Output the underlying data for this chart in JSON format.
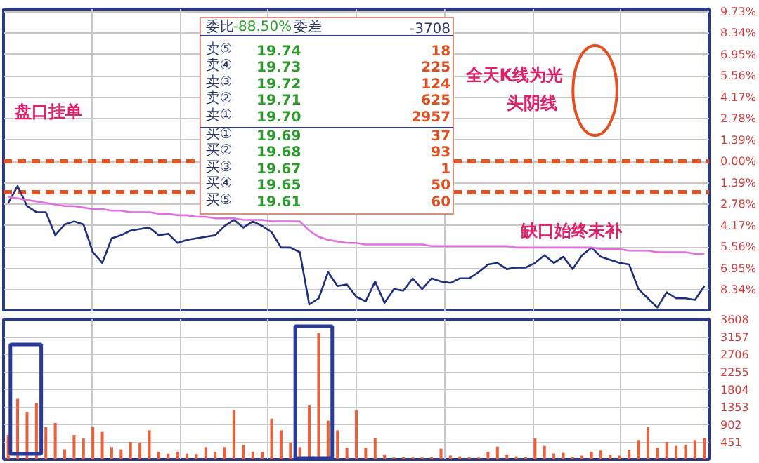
{
  "chart_data": [
    {
      "type": "line",
      "categories": [
        null,
        null,
        null,
        null,
        null,
        null,
        null,
        null,
        null,
        null,
        null,
        null,
        null,
        null,
        null,
        null,
        null,
        null,
        null,
        null,
        null,
        null,
        null,
        null,
        null,
        null,
        null,
        null,
        null,
        null,
        null,
        null,
        null,
        null,
        null,
        null,
        null,
        null,
        null,
        null,
        null,
        null,
        null,
        null,
        null,
        null,
        null,
        null,
        null,
        null,
        null,
        null,
        null,
        null,
        null,
        null,
        null,
        null,
        null,
        null,
        null,
        null,
        null,
        null,
        null,
        null,
        null,
        null,
        null,
        null,
        null,
        null,
        null,
        null,
        null
      ],
      "series": [
        {
          "color": "#1f2f7f",
          "values": [
            -2.7,
            -1.6,
            -2.9,
            -3.3,
            -3.3,
            -4.8,
            -4.1,
            -3.9,
            -4.1,
            -5.9,
            -6.6,
            -5.0,
            -4.8,
            -4.5,
            -4.4,
            -4.3,
            -4.8,
            -4.7,
            -5.3,
            -5.1,
            -5.0,
            -4.9,
            -4.8,
            -4.2,
            -3.8,
            -4.3,
            -3.9,
            -4.2,
            -4.6,
            -5.6,
            -5.6,
            -5.9,
            -9.3,
            -8.9,
            -7.2,
            -8.1,
            -8.0,
            -8.8,
            -9.1,
            -7.8,
            -9.2,
            -8.3,
            -8.4,
            -7.6,
            -8.3,
            -7.6,
            -7.8,
            -7.9,
            -7.6,
            -7.6,
            -7.2,
            -6.7,
            -6.6,
            -7.0,
            -6.9,
            -6.9,
            -6.6,
            -6.1,
            -6.6,
            -6.2,
            -7.0,
            -6.1,
            -5.6,
            -6.2,
            -6.4,
            -6.6,
            -6.7,
            -8.3,
            -8.9,
            -9.5,
            -8.5,
            -8.9,
            -8.9,
            -9.0,
            -8.1
          ]
        },
        {
          "color": "#e070e0",
          "values": [
            -2.3,
            -2.4,
            -2.5,
            -2.6,
            -2.7,
            -2.8,
            -2.9,
            -2.9,
            -3.0,
            -3.1,
            -3.1,
            -3.2,
            -3.2,
            -3.3,
            -3.3,
            -3.3,
            -3.4,
            -3.4,
            -3.5,
            -3.5,
            -3.6,
            -3.6,
            -3.7,
            -3.7,
            -3.7,
            -3.8,
            -3.8,
            -3.8,
            -3.9,
            -3.9,
            -3.9,
            -3.9,
            -4.5,
            -4.9,
            -5.1,
            -5.2,
            -5.3,
            -5.3,
            -5.4,
            -5.4,
            -5.4,
            -5.4,
            -5.4,
            -5.4,
            -5.4,
            -5.5,
            -5.5,
            -5.5,
            -5.5,
            -5.5,
            -5.5,
            -5.5,
            -5.5,
            -5.5,
            -5.6,
            -5.6,
            -5.6,
            -5.6,
            -5.6,
            -5.6,
            -5.6,
            -5.6,
            -5.6,
            -5.7,
            -5.7,
            -5.7,
            -5.8,
            -5.8,
            -5.8,
            -5.9,
            -5.9,
            -5.9,
            -5.9,
            -6.0,
            -6.0
          ]
        }
      ],
      "ylim": [
        -9.8,
        9.9
      ],
      "yticks": [
        {
          "value": 9.73,
          "label": "9.73%"
        },
        {
          "value": 8.34,
          "label": "8.34%"
        },
        {
          "value": 6.95,
          "label": "6.95%"
        },
        {
          "value": 5.56,
          "label": "5.56%"
        },
        {
          "value": 4.17,
          "label": "4.17%"
        },
        {
          "value": 2.78,
          "label": "2.78%"
        },
        {
          "value": 1.39,
          "label": "1.39%"
        },
        {
          "value": 0,
          "label": "0.00%"
        },
        {
          "value": -1.39,
          "label": "1.39%"
        },
        {
          "value": -2.78,
          "label": "2.78%"
        },
        {
          "value": -4.17,
          "label": "4.17%"
        },
        {
          "value": -5.56,
          "label": "5.56%"
        },
        {
          "value": -6.95,
          "label": "6.95%"
        },
        {
          "value": -8.34,
          "label": "8.34%"
        }
      ],
      "grid": true,
      "ref_lines": [
        {
          "axis": "y",
          "value": 0,
          "color": "#e8501e",
          "line_style": "dashed"
        },
        {
          "axis": "y",
          "value": -2.0,
          "color": "#e8501e",
          "line_style": "dashed"
        }
      ],
      "annotations": [
        "委比",
        "-88.50%",
        "委差",
        "-3708",
        "卖⑤",
        "19.74",
        "18",
        "卖④",
        "19.73",
        "225",
        "卖③",
        "19.72",
        "124",
        "卖②",
        "19.71",
        "625",
        "卖①",
        "19.70",
        "2957",
        "买①",
        "19.69",
        "37",
        "买②",
        "19.68",
        "93",
        "买③",
        "19.67",
        "1",
        "买④",
        "19.65",
        "50",
        "买⑤",
        "19.61",
        "60",
        "盘口挂单",
        "全天K线为光头阴线",
        "缺口始终未补"
      ]
    },
    {
      "type": "bar",
      "categories": [
        null,
        null,
        null,
        null,
        null,
        null,
        null,
        null,
        null,
        null,
        null,
        null,
        null,
        null,
        null,
        null,
        null,
        null,
        null,
        null,
        null,
        null,
        null,
        null,
        null,
        null,
        null,
        null,
        null,
        null,
        null,
        null,
        null,
        null,
        null,
        null,
        null,
        null,
        null,
        null,
        null,
        null,
        null,
        null,
        null,
        null,
        null,
        null,
        null,
        null,
        null,
        null,
        null,
        null,
        null,
        null,
        null,
        null,
        null,
        null,
        null,
        null,
        null,
        null,
        null,
        null,
        null,
        null,
        null,
        null,
        null,
        null,
        null,
        null,
        null
      ],
      "values": [
        630,
        1560,
        1220,
        1450,
        830,
        940,
        260,
        630,
        540,
        830,
        710,
        320,
        260,
        450,
        430,
        750,
        200,
        150,
        200,
        150,
        140,
        320,
        200,
        320,
        1280,
        370,
        200,
        200,
        1050,
        750,
        430,
        320,
        1390,
        3250,
        1000,
        750,
        300,
        1270,
        300,
        560,
        130,
        50,
        60,
        50,
        50,
        60,
        280,
        100,
        80,
        60,
        50,
        200,
        330,
        130,
        80,
        60,
        540,
        350,
        150,
        170,
        60,
        100,
        200,
        230,
        120,
        100,
        250,
        500,
        830,
        300,
        450,
        350,
        380,
        500,
        550
      ],
      "color": "#e8603c",
      "ylim": [
        0,
        3608
      ],
      "yticks": [
        451,
        902,
        1353,
        1804,
        2255,
        2706,
        3157,
        3608
      ],
      "grid": true
    }
  ]
}
